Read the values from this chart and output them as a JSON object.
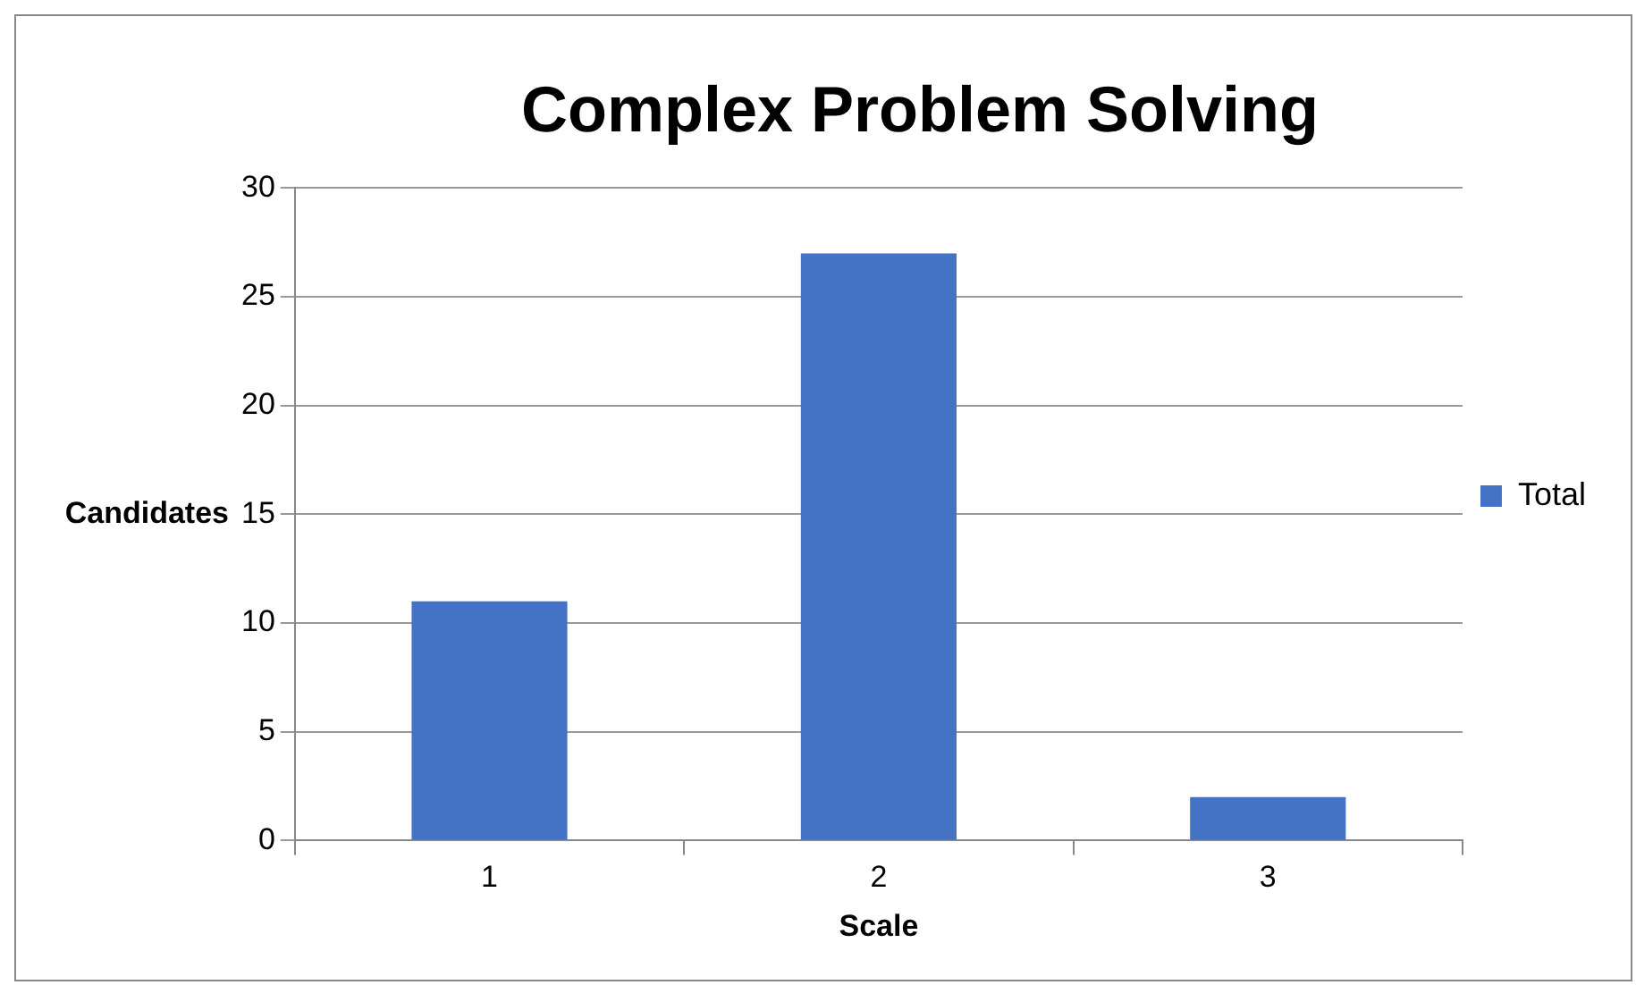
{
  "chart_data": {
    "type": "bar",
    "title": "Complex Problem Solving",
    "xlabel": "Scale",
    "ylabel": "Candidates",
    "categories": [
      "1",
      "2",
      "3"
    ],
    "series": [
      {
        "name": "Total",
        "color": "#4472c4",
        "values": [
          11,
          27,
          2
        ]
      }
    ],
    "ylim": [
      0,
      30
    ],
    "yticks": [
      0,
      5,
      10,
      15,
      20,
      25,
      30
    ],
    "grid": "y",
    "legend": "right"
  }
}
